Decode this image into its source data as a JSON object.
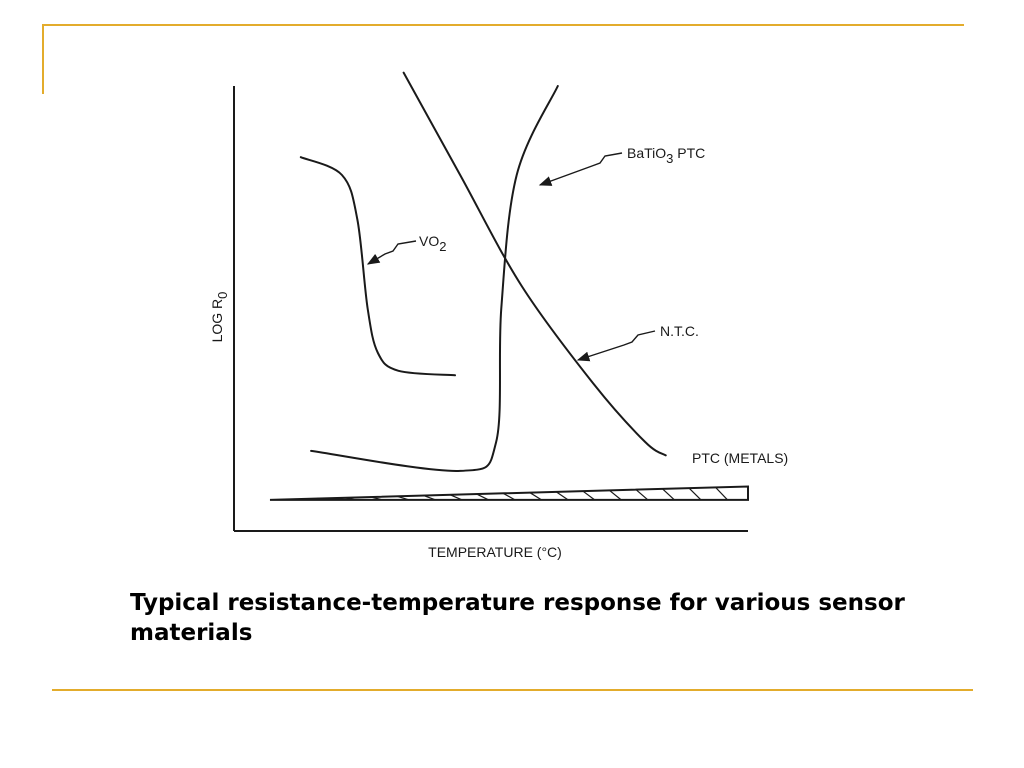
{
  "caption": "Typical resistance-temperature response for various sensor materials",
  "colors": {
    "accent_rule": "#e3ac2c",
    "ink": "#1a1a1a"
  },
  "chart_data": {
    "type": "line",
    "title": "",
    "xlabel": "TEMPERATURE (°C)",
    "ylabel": "LOG R0",
    "ylabel_main": "LOG R",
    "ylabel_sub": "0",
    "xlim": [
      0,
      100
    ],
    "ylim": [
      0,
      100
    ],
    "grid": false,
    "x_ticks_shown": false,
    "y_ticks_shown": false,
    "series": [
      {
        "key": "vo2",
        "name": "VO2",
        "label_main": "VO",
        "label_sub": "2",
        "points": [
          [
            13,
            84
          ],
          [
            21,
            80
          ],
          [
            24,
            70
          ],
          [
            26,
            50
          ],
          [
            28,
            40
          ],
          [
            32,
            36
          ],
          [
            43,
            35
          ]
        ]
      },
      {
        "key": "ntc",
        "name": "N.T.C.",
        "label_main": "N.T.C.",
        "points": [
          [
            33,
            103
          ],
          [
            44,
            80
          ],
          [
            56,
            55
          ],
          [
            70,
            33
          ],
          [
            80,
            20
          ],
          [
            84,
            17
          ]
        ]
      },
      {
        "key": "batio3",
        "name": "BaTiO3 PTC",
        "label_main": "BaTiO",
        "label_sub": "3",
        "label_suffix": " PTC",
        "points": [
          [
            15,
            18
          ],
          [
            44,
            13.5
          ],
          [
            51,
            20
          ],
          [
            52,
            50
          ],
          [
            55,
            80
          ],
          [
            63,
            100
          ]
        ]
      },
      {
        "key": "ptc_metals",
        "name": "PTC (METALS)",
        "label_main": "PTC (METALS)",
        "points": [
          [
            7,
            7
          ],
          [
            100,
            10
          ]
        ],
        "band_lower": [
          [
            7,
            7
          ],
          [
            100,
            7
          ]
        ]
      }
    ]
  }
}
